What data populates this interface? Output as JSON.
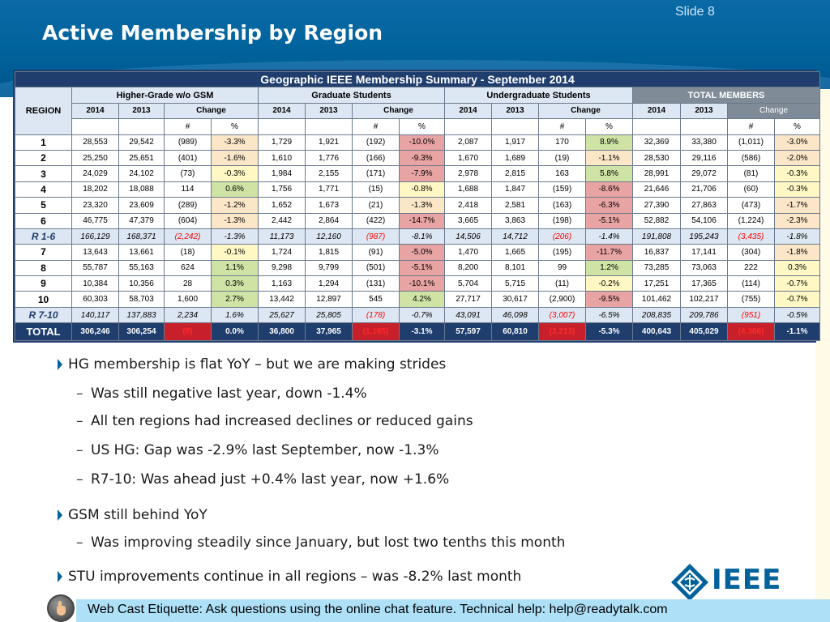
{
  "slide": {
    "number_label": "Slide 8",
    "title": "Active Membership by Region"
  },
  "table": {
    "title": "Geographic IEEE Membership Summary - September  2014",
    "region_header": "REGION",
    "groups": [
      "Higher-Grade w/o GSM",
      "Graduate Students",
      "Undergraduate Students",
      "TOTAL MEMBERS"
    ],
    "year_labels": [
      "2014",
      "2013"
    ],
    "change_label": "Change",
    "unit_labels": [
      "#",
      "%"
    ],
    "rows": [
      {
        "region": "1",
        "kind": "data",
        "cells": [
          "28,553",
          "29,542",
          "(989)",
          "-3.3%",
          "1,729",
          "1,921",
          "(192)",
          "-10.0%",
          "2,087",
          "1,917",
          "170",
          "8.9%",
          "32,369",
          "33,380",
          "(1,011)",
          "-3.0%"
        ]
      },
      {
        "region": "2",
        "kind": "data",
        "cells": [
          "25,250",
          "25,651",
          "(401)",
          "-1.6%",
          "1,610",
          "1,776",
          "(166)",
          "-9.3%",
          "1,670",
          "1,689",
          "(19)",
          "-1.1%",
          "28,530",
          "29,116",
          "(586)",
          "-2.0%"
        ]
      },
      {
        "region": "3",
        "kind": "data",
        "cells": [
          "24,029",
          "24,102",
          "(73)",
          "-0.3%",
          "1,984",
          "2,155",
          "(171)",
          "-7.9%",
          "2,978",
          "2,815",
          "163",
          "5.8%",
          "28,991",
          "29,072",
          "(81)",
          "-0.3%"
        ]
      },
      {
        "region": "4",
        "kind": "data",
        "cells": [
          "18,202",
          "18,088",
          "114",
          "0.6%",
          "1,756",
          "1,771",
          "(15)",
          "-0.8%",
          "1,688",
          "1,847",
          "(159)",
          "-8.6%",
          "21,646",
          "21,706",
          "(60)",
          "-0.3%"
        ]
      },
      {
        "region": "5",
        "kind": "data",
        "cells": [
          "23,320",
          "23,609",
          "(289)",
          "-1.2%",
          "1,652",
          "1,673",
          "(21)",
          "-1.3%",
          "2,418",
          "2,581",
          "(163)",
          "-6.3%",
          "27,390",
          "27,863",
          "(473)",
          "-1.7%"
        ]
      },
      {
        "region": "6",
        "kind": "data",
        "cells": [
          "46,775",
          "47,379",
          "(604)",
          "-1.3%",
          "2,442",
          "2,864",
          "(422)",
          "-14.7%",
          "3,665",
          "3,863",
          "(198)",
          "-5.1%",
          "52,882",
          "54,106",
          "(1,224)",
          "-2.3%"
        ]
      },
      {
        "region": "R 1-6",
        "kind": "sub",
        "cells": [
          "166,129",
          "168,371",
          "(2,242)",
          "-1.3%",
          "11,173",
          "12,160",
          "(987)",
          "-8.1%",
          "14,506",
          "14,712",
          "(206)",
          "-1.4%",
          "191,808",
          "195,243",
          "(3,435)",
          "-1.8%"
        ]
      },
      {
        "region": "7",
        "kind": "data",
        "cells": [
          "13,643",
          "13,661",
          "(18)",
          "-0.1%",
          "1,724",
          "1,815",
          "(91)",
          "-5.0%",
          "1,470",
          "1,665",
          "(195)",
          "-11.7%",
          "16,837",
          "17,141",
          "(304)",
          "-1.8%"
        ]
      },
      {
        "region": "8",
        "kind": "data",
        "cells": [
          "55,787",
          "55,163",
          "624",
          "1.1%",
          "9,298",
          "9,799",
          "(501)",
          "-5.1%",
          "8,200",
          "8,101",
          "99",
          "1.2%",
          "73,285",
          "73,063",
          "222",
          "0.3%"
        ]
      },
      {
        "region": "9",
        "kind": "data",
        "cells": [
          "10,384",
          "10,356",
          "28",
          "0.3%",
          "1,163",
          "1,294",
          "(131)",
          "-10.1%",
          "5,704",
          "5,715",
          "(11)",
          "-0.2%",
          "17,251",
          "17,365",
          "(114)",
          "-0.7%"
        ]
      },
      {
        "region": "10",
        "kind": "data",
        "cells": [
          "60,303",
          "58,703",
          "1,600",
          "2.7%",
          "13,442",
          "12,897",
          "545",
          "4.2%",
          "27,717",
          "30,617",
          "(2,900)",
          "-9.5%",
          "101,462",
          "102,217",
          "(755)",
          "-0.7%"
        ]
      },
      {
        "region": "R 7-10",
        "kind": "sub",
        "cells": [
          "140,117",
          "137,883",
          "2,234",
          "1.6%",
          "25,627",
          "25,805",
          "(178)",
          "-0.7%",
          "43,091",
          "46,098",
          "(3,007)",
          "-6.5%",
          "208,835",
          "209,786",
          "(951)",
          "-0.5%"
        ]
      },
      {
        "region": "TOTAL",
        "kind": "total",
        "cells": [
          "306,246",
          "306,254",
          "(8)",
          "0.0%",
          "36,800",
          "37,965",
          "(1,165)",
          "-3.1%",
          "57,597",
          "60,810",
          "(3,213)",
          "-5.3%",
          "400,643",
          "405,029",
          "(4,386)",
          "-1.1%"
        ]
      }
    ]
  },
  "bullets": [
    {
      "level": 1,
      "text": "HG membership is flat YoY – but we are making strides"
    },
    {
      "level": 2,
      "text": "Was still negative last year, down -1.4%"
    },
    {
      "level": 2,
      "text": "All ten regions had increased declines or reduced gains"
    },
    {
      "level": 2,
      "text": "US HG: Gap was -2.9% last September, now -1.3%"
    },
    {
      "level": 2,
      "text": "R7-10: Was ahead just +0.4% last year, now +1.6%"
    },
    {
      "level": 1,
      "text": "GSM still behind YoY"
    },
    {
      "level": 2,
      "text": "Was improving steadily since January, but lost two tenths this month"
    },
    {
      "level": 1,
      "text": "STU improvements continue in all regions – was -8.2% last month"
    }
  ],
  "logo": {
    "wordmark": "IEEE",
    "icon": "ieee-diamond-icon"
  },
  "footer": {
    "text": "Web Cast Etiquette:  Ask questions using the online chat feature. Technical help: help@readytalk.com",
    "icon": "raised-hand-icon"
  },
  "colors": {
    "brand": "#00629b",
    "navy": "#1f3e6e",
    "footer_bg": "#aee0f7",
    "negative": "#ff0000"
  }
}
